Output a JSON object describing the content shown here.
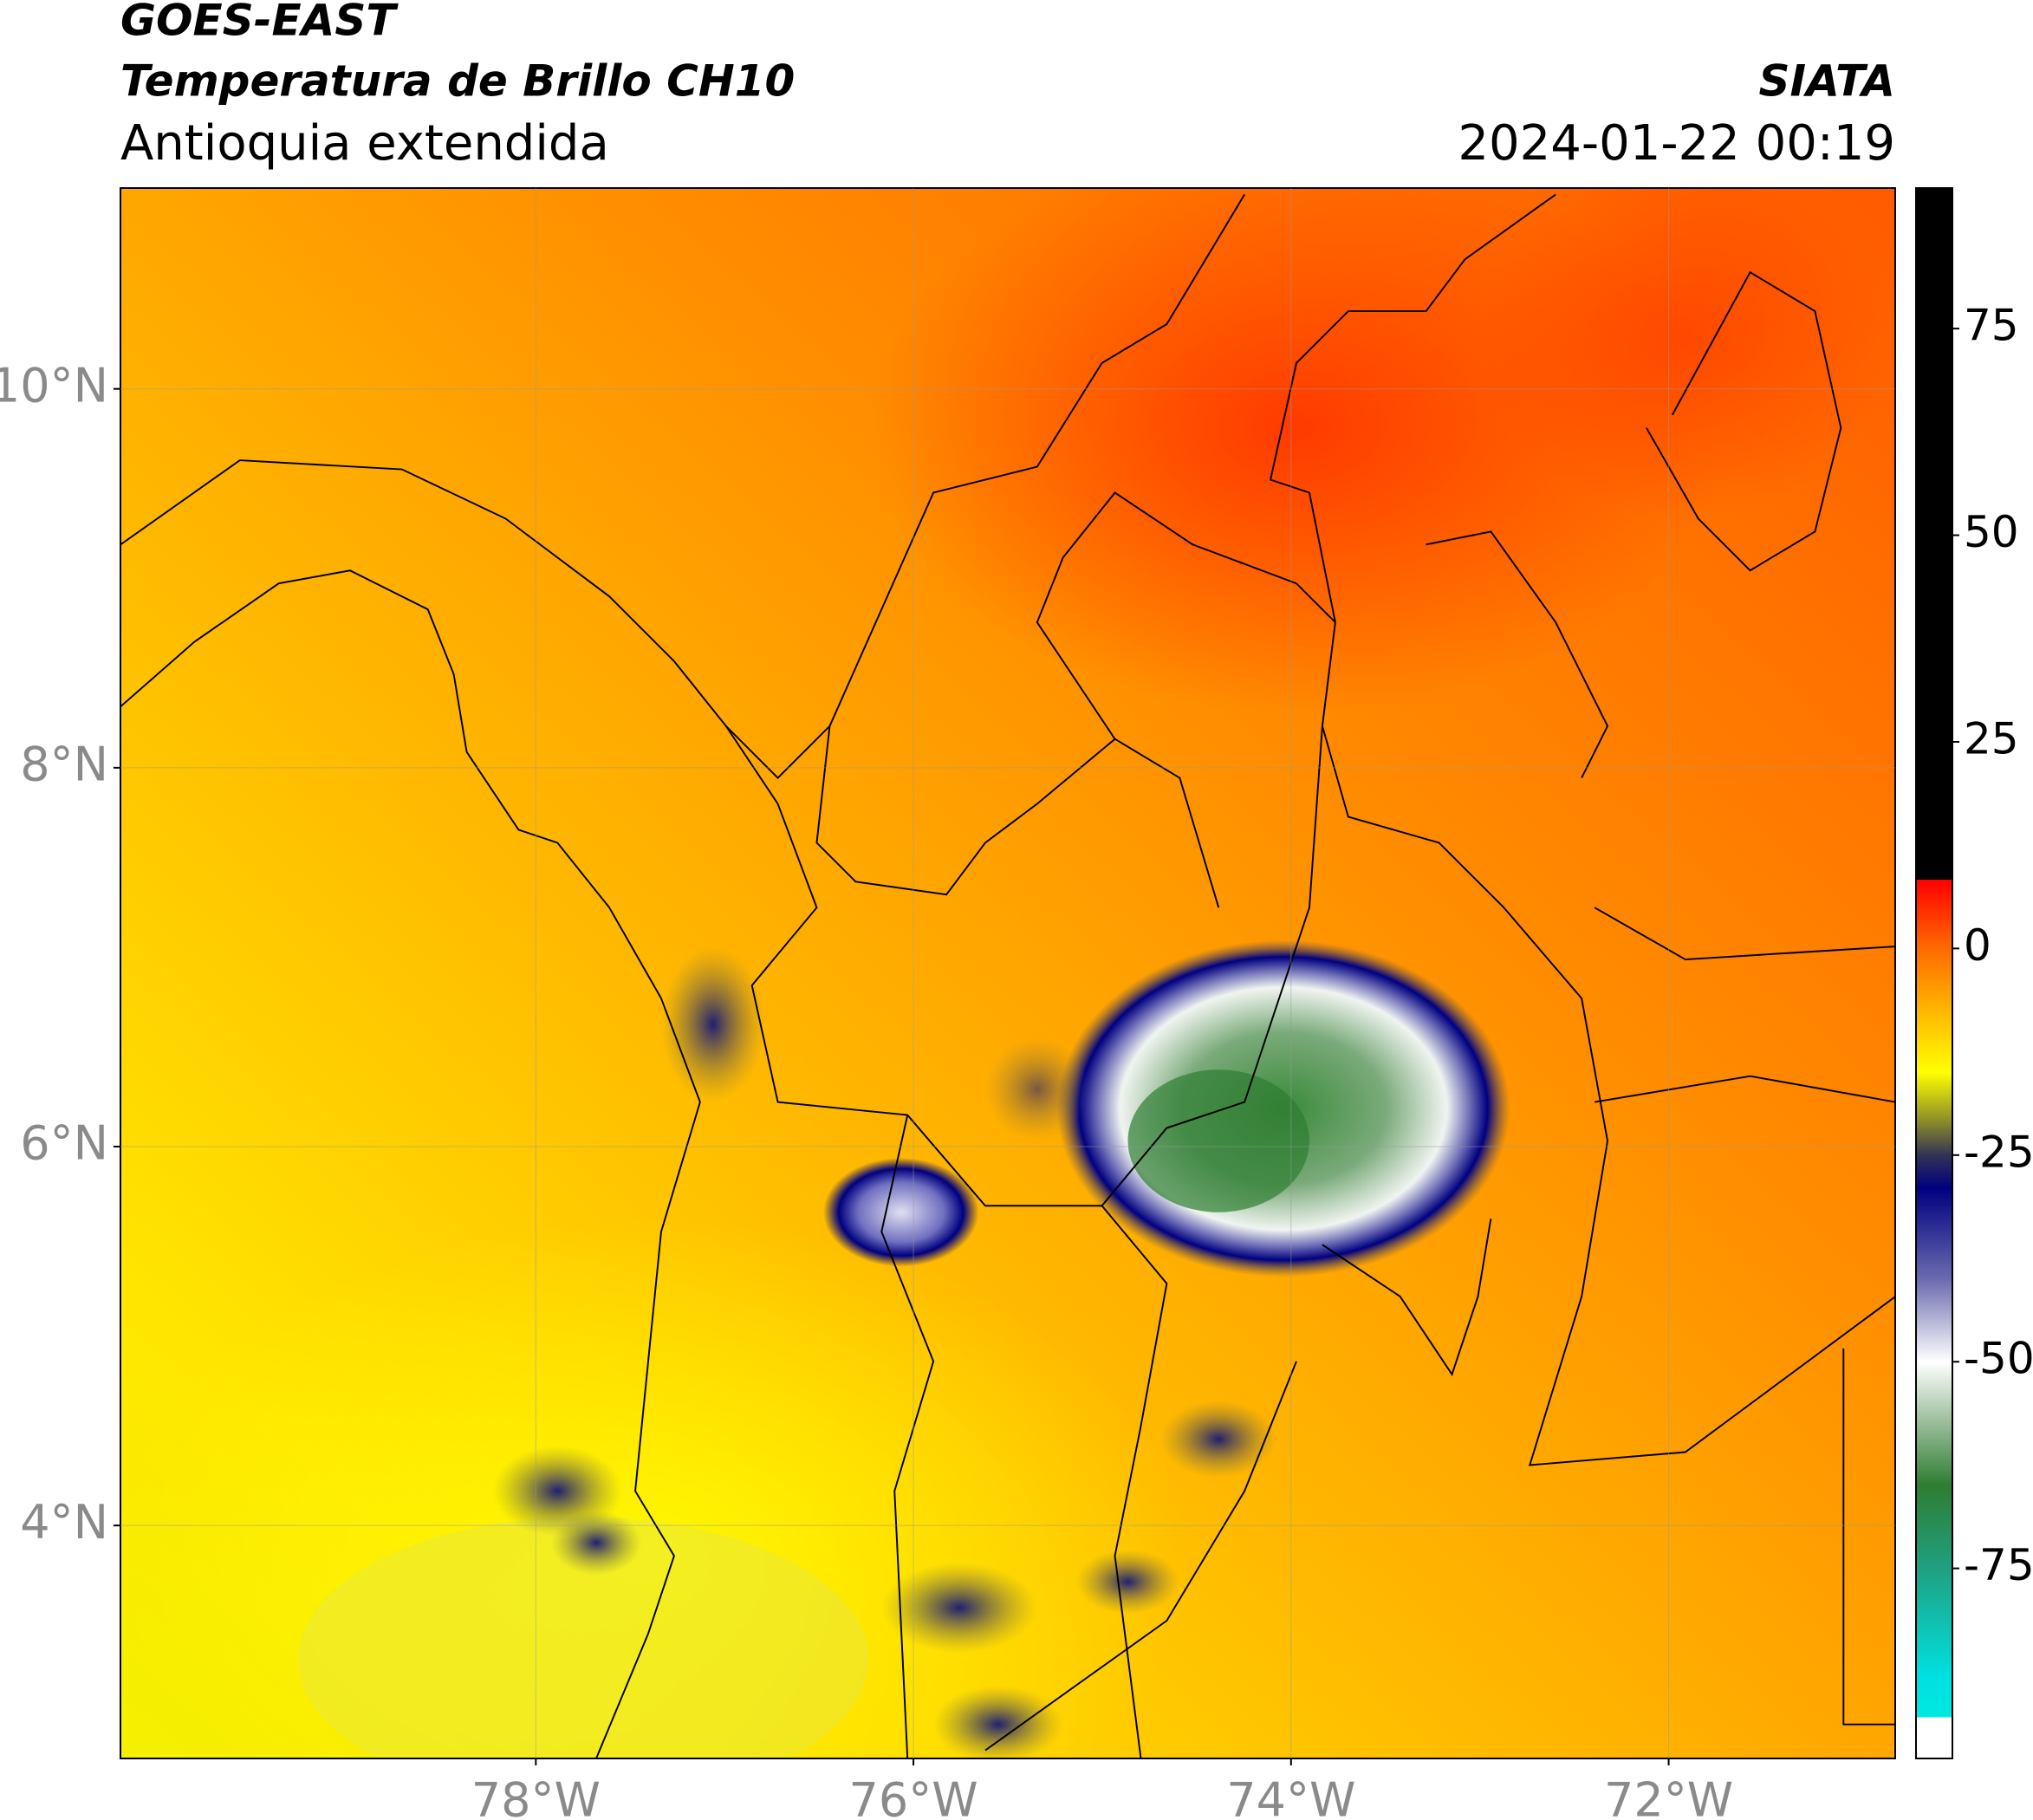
{
  "header": {
    "title": "GOES-EAST",
    "subtitle": "Temperatura de Brillo CH10",
    "region": "Antioquia extendida",
    "source": "SIATA",
    "datetime": "2024-01-22 00:19"
  },
  "map": {
    "xlim": [
      -80.2,
      -70.8
    ],
    "ylim": [
      2.77,
      11.06
    ],
    "xticks": [
      {
        "value": -78,
        "label": "78°W"
      },
      {
        "value": -76,
        "label": "76°W"
      },
      {
        "value": -74,
        "label": "74°W"
      },
      {
        "value": -72,
        "label": "72°W"
      }
    ],
    "yticks": [
      {
        "value": 4,
        "label": "4°N"
      },
      {
        "value": 6,
        "label": "6°N"
      },
      {
        "value": 8,
        "label": "8°N"
      },
      {
        "value": 10,
        "label": "10°N"
      }
    ],
    "grid": true
  },
  "colorbar": {
    "lim": [
      -98,
      92
    ],
    "ticks": [
      -75,
      -50,
      -25,
      0,
      25,
      50,
      75
    ],
    "stops": [
      {
        "value": 92,
        "color": "#000000"
      },
      {
        "value": 8.3,
        "color": "#000000"
      },
      {
        "value": 8.3,
        "color": "#ff0000"
      },
      {
        "value": 0,
        "color": "#ff6a00"
      },
      {
        "value": -8,
        "color": "#ffbb00"
      },
      {
        "value": -15,
        "color": "#ffff00"
      },
      {
        "value": -21,
        "color": "#8a8a2a"
      },
      {
        "value": -25,
        "color": "#333355"
      },
      {
        "value": -29,
        "color": "#000080"
      },
      {
        "value": -40,
        "color": "#6a6ab0"
      },
      {
        "value": -50,
        "color": "#ffffff"
      },
      {
        "value": -57,
        "color": "#a0c0a0"
      },
      {
        "value": -65,
        "color": "#2e7d32"
      },
      {
        "value": -75,
        "color": "#20a080"
      },
      {
        "value": -88,
        "color": "#00e0e0"
      },
      {
        "value": -93,
        "color": "#00e8e0"
      },
      {
        "value": -93,
        "color": "#ffffff"
      },
      {
        "value": -98,
        "color": "#ffffff"
      }
    ]
  }
}
